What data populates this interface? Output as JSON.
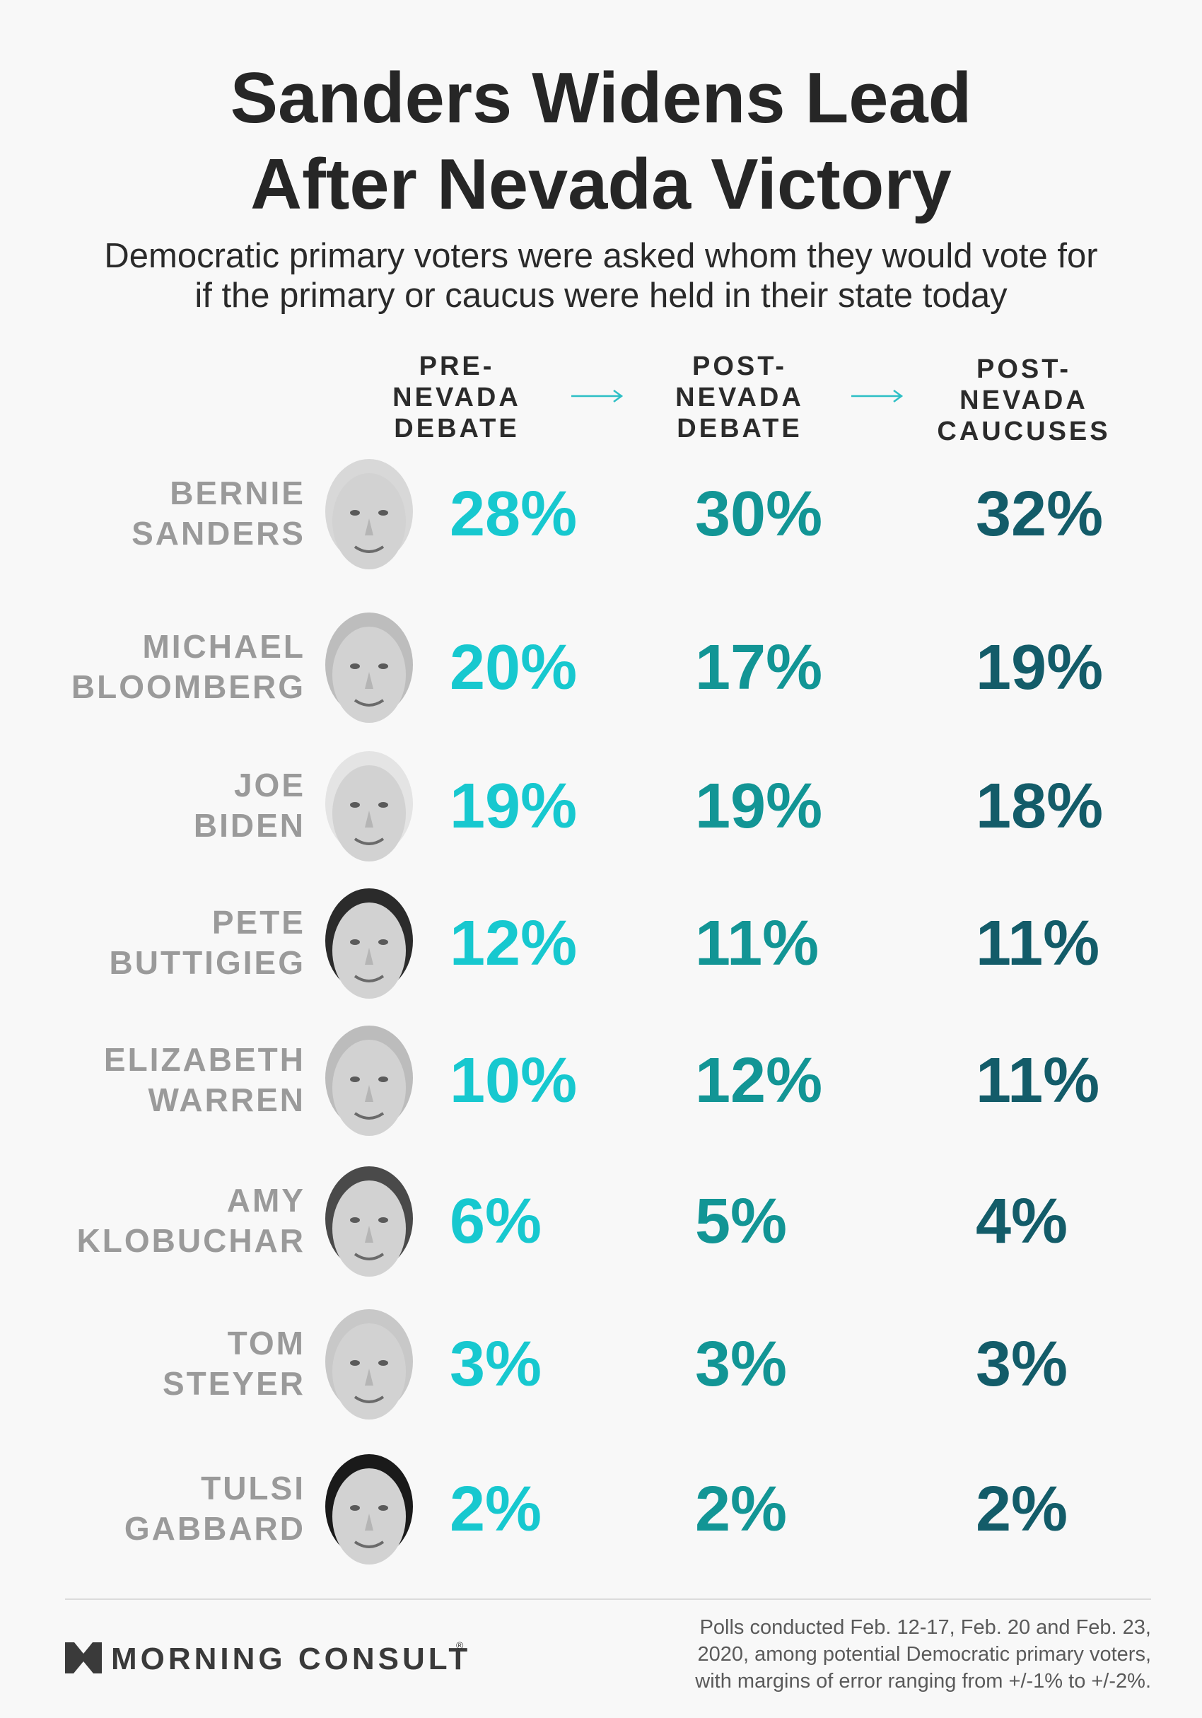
{
  "title_line1": "Sanders Widens Lead",
  "title_line2": "After Nevada Victory",
  "subtitle_line1": "Democratic primary voters were asked whom they would vote for",
  "subtitle_line2": "if the primary or caucus were held in their state today",
  "columns": [
    {
      "line1": "PRE-",
      "line2": "NEVADA",
      "line3": "DEBATE"
    },
    {
      "line1": "POST-",
      "line2": "NEVADA",
      "line3": "DEBATE"
    },
    {
      "line1": "POST-",
      "line2": "NEVADA",
      "line3": "CAUCUSES"
    }
  ],
  "colors": {
    "pre": "#17c8cf",
    "post_debate": "#129595",
    "post_caucus": "#135c69",
    "name": "#9a9a9a",
    "arrow": "#2dbfc5"
  },
  "chart_data": {
    "type": "table",
    "title": "Sanders Widens Lead After Nevada Victory",
    "subtitle": "Democratic primary voters were asked whom they would vote for if the primary or caucus were held in their state today",
    "columns": [
      "PRE-NEVADA DEBATE",
      "POST-NEVADA DEBATE",
      "POST-NEVADA CAUCUSES"
    ],
    "rows": [
      {
        "first": "BERNIE",
        "last": "SANDERS",
        "values": [
          28,
          30,
          32
        ],
        "labels": [
          "28%",
          "30%",
          "32%"
        ]
      },
      {
        "first": "MICHAEL",
        "last": "BLOOMBERG",
        "values": [
          20,
          17,
          19
        ],
        "labels": [
          "20%",
          "17%",
          "19%"
        ]
      },
      {
        "first": "JOE",
        "last": "BIDEN",
        "values": [
          19,
          19,
          18
        ],
        "labels": [
          "19%",
          "19%",
          "18%"
        ]
      },
      {
        "first": "PETE",
        "last": "BUTTIGIEG",
        "values": [
          12,
          11,
          11
        ],
        "labels": [
          "12%",
          "11%",
          "11%"
        ]
      },
      {
        "first": "ELIZABETH",
        "last": "WARREN",
        "values": [
          10,
          12,
          11
        ],
        "labels": [
          "10%",
          "12%",
          "11%"
        ]
      },
      {
        "first": "AMY",
        "last": "KLOBUCHAR",
        "values": [
          6,
          5,
          4
        ],
        "labels": [
          "6%",
          "5%",
          "4%"
        ]
      },
      {
        "first": "TOM",
        "last": "STEYER",
        "values": [
          3,
          3,
          3
        ],
        "labels": [
          "3%",
          "3%",
          "3%"
        ]
      },
      {
        "first": "TULSI",
        "last": "GABBARD",
        "values": [
          2,
          2,
          2
        ],
        "labels": [
          "2%",
          "2%",
          "2%"
        ]
      }
    ]
  },
  "footer": {
    "brand": "MORNING CONSULT",
    "registered": "®",
    "note_line1": "Polls conducted Feb. 12-17, Feb. 20 and Feb. 23,",
    "note_line2": "2020, among potential Democratic primary voters,",
    "note_line3": "with margins of error ranging from +/-1% to +/-2%."
  }
}
